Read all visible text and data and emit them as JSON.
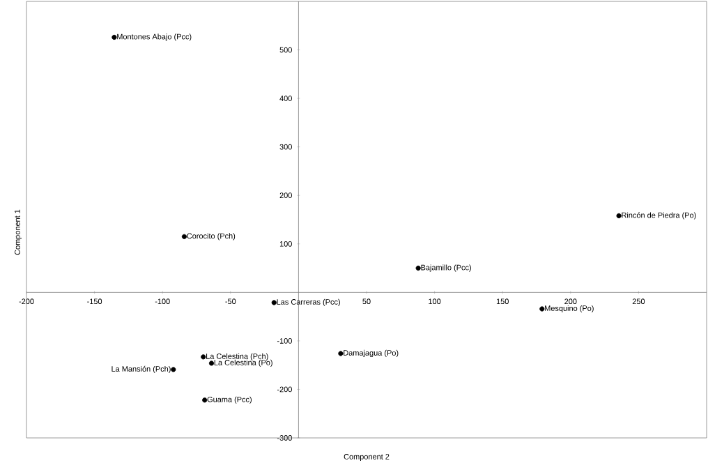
{
  "chart_data": {
    "type": "scatter",
    "xlabel": "Component 2",
    "ylabel": "Component 1",
    "x": [
      -135.5,
      -84,
      -18,
      -70,
      -64,
      -92,
      -69,
      31,
      88,
      179,
      235.5
    ],
    "values": [
      526,
      115,
      -21,
      -133,
      -146,
      -159,
      -222,
      -126,
      50,
      -34,
      158
    ],
    "color": "#000000",
    "xlim": [
      -200,
      300
    ],
    "ylim": [
      -300,
      600
    ],
    "xticks": [
      -200,
      -150,
      -100,
      -50,
      50,
      100,
      150,
      200,
      250
    ],
    "yticks": [
      -300,
      -200,
      -100,
      100,
      200,
      300,
      400,
      500
    ],
    "annotations": [
      {
        "text": "Montones Abajo (Pcc)",
        "x": -135.5,
        "y": 526
      },
      {
        "text": "Corocito (Pch)",
        "x": -84,
        "y": 115
      },
      {
        "text": "Las Carreras (Pcc)",
        "x": -18,
        "y": -21
      },
      {
        "text": "La Celestina (Pch)",
        "x": -70,
        "y": -133
      },
      {
        "text": "La Celestina (Po)",
        "x": -64,
        "y": -146
      },
      {
        "text": "La Mansión (Pch)",
        "x": -92,
        "y": -159
      },
      {
        "text": "Guama (Pcc)",
        "x": -69,
        "y": -222
      },
      {
        "text": "Damajagua (Po)",
        "x": 31,
        "y": -126
      },
      {
        "text": "Bajamillo (Pcc)",
        "x": 88,
        "y": 50
      },
      {
        "text": "Mesquino (Po)",
        "x": 179,
        "y": -34
      },
      {
        "text": "Rincón de Piedra (Po)",
        "x": 235.5,
        "y": 158
      }
    ]
  }
}
